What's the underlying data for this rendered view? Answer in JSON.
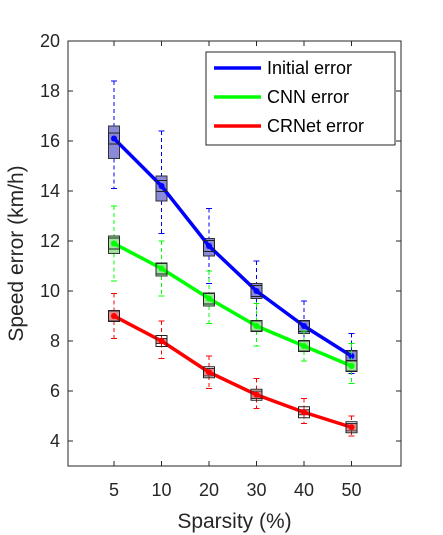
{
  "chart_data": {
    "type": "line",
    "categories": [
      "5",
      "10",
      "20",
      "30",
      "40",
      "50"
    ],
    "xlabel": "Sparsity (%)",
    "ylabel": "Speed error (km/h)",
    "ylim": [
      3,
      20
    ],
    "yticks": [
      4,
      6,
      8,
      10,
      12,
      14,
      16,
      18,
      20
    ],
    "grid": false,
    "legend_position": "top-right",
    "series": [
      {
        "name": "Initial error",
        "color": "#0000ff",
        "values": [
          16.1,
          14.2,
          11.8,
          10.0,
          8.6,
          7.4
        ],
        "box": {
          "q1": [
            15.3,
            13.6,
            11.4,
            9.7,
            8.3,
            7.2
          ],
          "q3": [
            16.6,
            14.6,
            12.1,
            10.3,
            8.8,
            7.6
          ],
          "whisker_low": [
            14.1,
            12.3,
            10.3,
            8.8,
            7.7,
            6.7
          ],
          "whisker_high": [
            18.4,
            16.4,
            13.3,
            11.2,
            9.6,
            8.3
          ]
        }
      },
      {
        "name": "CNN error",
        "color": "#00ff00",
        "values": [
          11.9,
          10.9,
          9.7,
          8.6,
          7.8,
          7.0
        ],
        "box": {
          "q1": [
            11.5,
            10.6,
            9.4,
            8.4,
            7.6,
            6.8
          ],
          "q3": [
            12.2,
            11.1,
            9.9,
            8.8,
            8.0,
            7.2
          ],
          "whisker_low": [
            10.4,
            9.8,
            8.7,
            7.8,
            7.2,
            6.3
          ],
          "whisker_high": [
            13.4,
            12.0,
            10.8,
            9.5,
            8.4,
            7.9
          ]
        }
      },
      {
        "name": "CRNet error",
        "color": "#ff0000",
        "values": [
          9.0,
          8.0,
          6.75,
          5.85,
          5.15,
          4.55
        ],
        "box": {
          "q1": [
            8.8,
            7.9,
            6.6,
            5.7,
            5.05,
            4.4
          ],
          "q3": [
            9.2,
            8.1,
            6.9,
            6.0,
            5.25,
            4.7
          ],
          "whisker_low": [
            8.1,
            7.3,
            6.1,
            5.3,
            4.7,
            4.2
          ],
          "whisker_high": [
            9.9,
            8.8,
            7.4,
            6.5,
            5.7,
            5.0
          ]
        }
      }
    ]
  }
}
